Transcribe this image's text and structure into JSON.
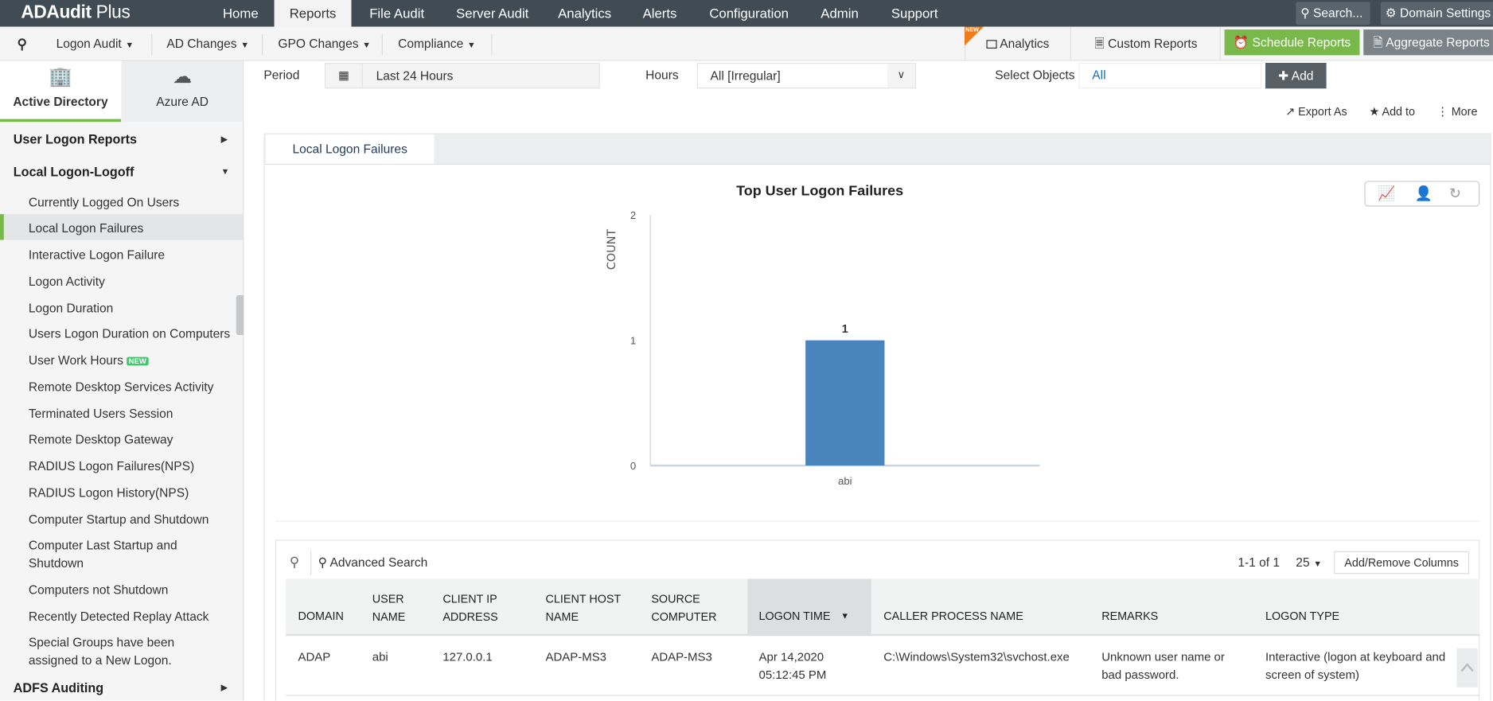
{
  "app": {
    "logo": "ADAudit",
    "logo_suffix": " Plus"
  },
  "topnav": [
    "Home",
    "Reports",
    "File Audit",
    "Server Audit",
    "Analytics",
    "Alerts",
    "Configuration",
    "Admin",
    "Support"
  ],
  "top_right": {
    "search": "Search...",
    "domain_settings": "Domain Settings"
  },
  "subnav": {
    "items": [
      "Logon Audit",
      "AD Changes",
      "GPO Changes",
      "Compliance"
    ],
    "analytics": "Analytics",
    "new_badge": "NEW",
    "custom_reports": "Custom Reports",
    "schedule_reports": "Schedule Reports",
    "aggregate_reports": "Aggregate Reports"
  },
  "sidebar": {
    "tabs": [
      "Active Directory",
      "Azure AD"
    ],
    "sections": {
      "user_logon": "User Logon Reports",
      "local": "Local Logon-Logoff",
      "adfs": "ADFS Auditing"
    },
    "items": [
      "Currently Logged On Users",
      "Local Logon Failures",
      "Interactive Logon Failure",
      "Logon Activity",
      "Logon Duration",
      "Users Logon Duration on Computers",
      "User Work Hours",
      "Remote Desktop Services Activity",
      "Terminated Users Session",
      "Remote Desktop Gateway",
      "RADIUS Logon Failures(NPS)",
      "RADIUS Logon History(NPS)",
      "Computer Startup and Shutdown",
      "Computer Last Startup and Shutdown",
      "Computers not Shutdown",
      "Recently Detected Replay Attack",
      "Special Groups have been assigned to a New Logon."
    ],
    "new_badge": "NEW"
  },
  "filters": {
    "period_label": "Period",
    "period_value": "Last 24 Hours",
    "hours_label": "Hours",
    "hours_value": "All [Irregular]",
    "objects_label": "Select Objects",
    "objects_value": "All",
    "add": "Add"
  },
  "actions": {
    "export": "Export As",
    "add_to": "Add to",
    "more": "More"
  },
  "report_tab": "Local Logon Failures",
  "chart_data": {
    "type": "bar",
    "title": "Top User Logon Failures",
    "ylabel": "COUNT",
    "xlabel": "",
    "categories": [
      "abi"
    ],
    "values": [
      1
    ],
    "ylim": [
      0,
      2
    ],
    "yticks": [
      "0",
      "1",
      "2"
    ],
    "data_labels": [
      "1"
    ],
    "color": "#4a84bc"
  },
  "table": {
    "advanced_search": "Advanced Search",
    "pagination": "1-1 of 1",
    "page_size": "25",
    "add_remove": "Add/Remove Columns",
    "headers": [
      [
        "DOMAIN"
      ],
      [
        "USER",
        "NAME"
      ],
      [
        "CLIENT IP",
        "ADDRESS"
      ],
      [
        "CLIENT HOST",
        "NAME"
      ],
      [
        "SOURCE",
        "COMPUTER"
      ],
      [
        "LOGON TIME"
      ],
      [
        "CALLER PROCESS NAME"
      ],
      [
        "REMARKS"
      ],
      [
        "LOGON TYPE"
      ]
    ],
    "rows": [
      [
        [
          "ADAP"
        ],
        [
          "abi"
        ],
        [
          "127.0.0.1"
        ],
        [
          "ADAP-MS3"
        ],
        [
          "ADAP-MS3"
        ],
        [
          "Apr 14,2020",
          "05:12:45 PM"
        ],
        [
          "C:\\Windows\\System32\\svchost.exe"
        ],
        [
          "Unknown user name or",
          "bad password."
        ],
        [
          "Interactive (logon at keyboard and",
          "screen of system)"
        ]
      ]
    ]
  }
}
